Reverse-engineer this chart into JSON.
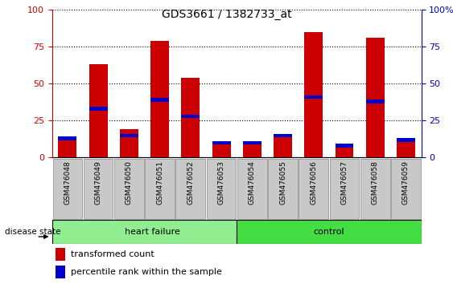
{
  "title": "GDS3661 / 1382733_at",
  "samples": [
    "GSM476048",
    "GSM476049",
    "GSM476050",
    "GSM476051",
    "GSM476052",
    "GSM476053",
    "GSM476054",
    "GSM476055",
    "GSM476056",
    "GSM476057",
    "GSM476058",
    "GSM476059"
  ],
  "transformed_count": [
    12,
    63,
    19,
    79,
    54,
    9,
    10,
    15,
    85,
    9,
    81,
    13
  ],
  "percentile_rank": [
    13,
    33,
    15,
    39,
    28,
    10,
    10,
    15,
    41,
    8,
    38,
    12
  ],
  "groups": [
    {
      "label": "heart failure",
      "start": 0,
      "end": 6,
      "color": "#90EE90"
    },
    {
      "label": "control",
      "start": 6,
      "end": 12,
      "color": "#44DD44"
    }
  ],
  "ylim": [
    0,
    100
  ],
  "yticks": [
    0,
    25,
    50,
    75,
    100
  ],
  "bar_color_red": "#CC0000",
  "bar_color_blue": "#0000CC",
  "left_axis_color": "#CC0000",
  "right_axis_color": "#0000BB",
  "legend_red_label": "transformed count",
  "legend_blue_label": "percentile rank within the sample",
  "disease_state_label": "disease state",
  "bar_width": 0.6,
  "tick_bg_color": "#C8C8C8",
  "tick_border_color": "#888888"
}
